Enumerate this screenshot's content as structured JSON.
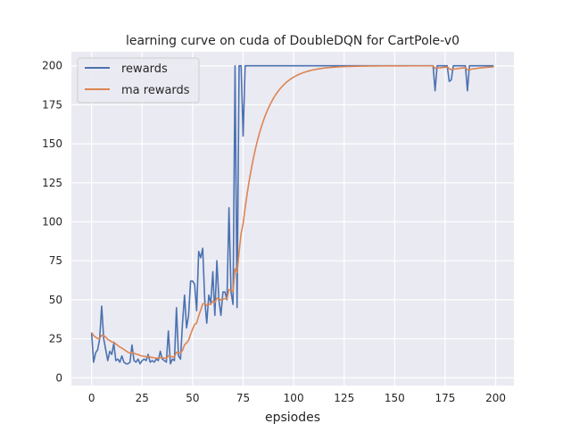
{
  "chart_data": {
    "type": "line",
    "title": "learning curve on cuda of DoubleDQN for CartPole-v0",
    "xlabel": "epsiodes",
    "ylabel": "",
    "xlim": [
      -10,
      209
    ],
    "ylim": [
      -5,
      209
    ],
    "xticks": [
      0,
      25,
      50,
      75,
      100,
      125,
      150,
      175,
      200
    ],
    "yticks": [
      0,
      25,
      50,
      75,
      100,
      125,
      150,
      175,
      200
    ],
    "grid": true,
    "legend_position": "top-left",
    "ma_smoothing": 0.1,
    "series": [
      {
        "name": "rewards",
        "color": "#4c72b0",
        "values": [
          29,
          10,
          16,
          18,
          25,
          46,
          25,
          18,
          11,
          17,
          15,
          22,
          11,
          12,
          10,
          14,
          10,
          9,
          9,
          10,
          21,
          11,
          10,
          12,
          9,
          11,
          12,
          11,
          15,
          10,
          11,
          10,
          12,
          11,
          17,
          12,
          11,
          10,
          30,
          9,
          12,
          11,
          45,
          14,
          12,
          35,
          53,
          32,
          40,
          62,
          62,
          60,
          43,
          81,
          77,
          83,
          50,
          35,
          53,
          48,
          68,
          40,
          75,
          50,
          40,
          55,
          55,
          50,
          109,
          55,
          47,
          200,
          45,
          200,
          200,
          155,
          200,
          200,
          200,
          200,
          200,
          200,
          200,
          200,
          200,
          200,
          200,
          200,
          200,
          200,
          200,
          200,
          200,
          200,
          200,
          200,
          200,
          200,
          200,
          200,
          200,
          200,
          200,
          200,
          200,
          200,
          200,
          200,
          200,
          200,
          200,
          200,
          200,
          200,
          200,
          200,
          200,
          200,
          200,
          200,
          200,
          200,
          200,
          200,
          200,
          200,
          200,
          200,
          200,
          200,
          200,
          200,
          200,
          200,
          200,
          200,
          200,
          200,
          200,
          200,
          200,
          200,
          200,
          200,
          200,
          200,
          200,
          200,
          200,
          200,
          200,
          200,
          200,
          200,
          200,
          200,
          200,
          200,
          200,
          200,
          200,
          200,
          200,
          200,
          200,
          200,
          200,
          200,
          200,
          200,
          184,
          200,
          200,
          200,
          200,
          200,
          200,
          190,
          191,
          200,
          200,
          200,
          200,
          200,
          200,
          200,
          184,
          200,
          200,
          200,
          200,
          200,
          200,
          200,
          200,
          200,
          200,
          200,
          200,
          200
        ]
      },
      {
        "name": "ma rewards",
        "color": "#dd8452",
        "derived_from": "rewards"
      }
    ]
  },
  "colors": {
    "background": "#eaeaf2",
    "grid": "#ffffff"
  }
}
